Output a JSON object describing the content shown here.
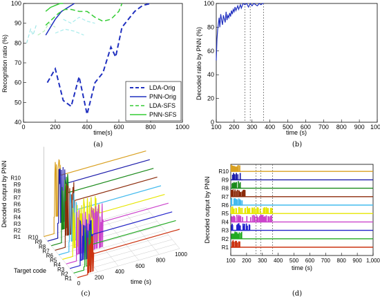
{
  "chart_data": [
    {
      "id": "a",
      "type": "line",
      "caption": "(a)",
      "xlabel": "time(s)",
      "ylabel": "Recognition ratio (%)",
      "xlim": [
        0,
        1000
      ],
      "ylim": [
        40,
        100
      ],
      "xticks": [
        0,
        200,
        400,
        600,
        800,
        1000
      ],
      "yticks": [
        40,
        50,
        60,
        70,
        80,
        90,
        100
      ],
      "legend_position": "bottom-right",
      "series": [
        {
          "name": "LDA-Orig",
          "color": "#1f2fbf",
          "dash": "7,4",
          "width": 2,
          "x": [
            150,
            200,
            250,
            300,
            350,
            400,
            450,
            500,
            550,
            580,
            620,
            660,
            700,
            750,
            800
          ],
          "y": [
            60,
            67,
            51,
            48,
            63,
            44,
            60,
            65,
            78,
            73,
            88,
            92,
            96,
            99,
            100
          ]
        },
        {
          "name": "PNN-Orig",
          "color": "#1f2fbf",
          "dash": "",
          "width": 1.5,
          "x": [
            140,
            170,
            200,
            240,
            280,
            320
          ],
          "y": [
            84,
            88,
            92,
            96,
            98,
            100
          ]
        },
        {
          "name": "LDA-SFS",
          "color": "#33cc33",
          "dash": "7,4",
          "width": 1.5,
          "x": [
            140,
            180,
            220,
            260,
            300,
            350,
            400,
            450,
            500,
            550,
            600,
            620
          ],
          "y": [
            89,
            92,
            95,
            97,
            97,
            96,
            96,
            93,
            91,
            92,
            96,
            100
          ]
        },
        {
          "name": "PNN-SFS",
          "color": "#33cc33",
          "dash": "",
          "width": 1.5,
          "x": [
            140,
            170,
            200,
            230,
            250
          ],
          "y": [
            96,
            98,
            99,
            100,
            100
          ]
        }
      ]
    },
    {
      "id": "b",
      "type": "line",
      "caption": "(b)",
      "xlabel": "time (s)",
      "ylabel": "Decoded ratio by PNN (%)",
      "xlim": [
        100,
        1000
      ],
      "ylim": [
        0,
        100
      ],
      "xticks": [
        100,
        200,
        300,
        400,
        500,
        600,
        700,
        800,
        900,
        1000
      ],
      "yticks": [
        0,
        20,
        40,
        60,
        80,
        100
      ],
      "vlines": [
        260,
        290,
        365
      ],
      "series": [
        {
          "name": "",
          "color": "#1f2fbf",
          "x": [
            100,
            104,
            108,
            112,
            116,
            120,
            125,
            130,
            135,
            140,
            145,
            150,
            155,
            160,
            165,
            170,
            175,
            180,
            185,
            190,
            195,
            200,
            205,
            210,
            215,
            220,
            225,
            230,
            235,
            240,
            245,
            250,
            260,
            270,
            280,
            290,
            300,
            310,
            320,
            330,
            340,
            350,
            360,
            365
          ],
          "y": [
            52,
            70,
            78,
            83,
            88,
            80,
            91,
            86,
            82,
            90,
            87,
            84,
            93,
            86,
            90,
            88,
            92,
            89,
            94,
            91,
            95,
            93,
            97,
            94,
            96,
            98,
            95,
            97,
            99,
            96,
            98,
            100,
            99,
            100,
            97,
            100,
            98,
            100,
            99,
            98,
            100,
            99,
            100,
            100
          ]
        }
      ]
    },
    {
      "id": "c",
      "type": "line",
      "caption": "(c)",
      "xlabel": "time (s)",
      "ylabel": "Decoded output by PNN",
      "depth_label": "Target code",
      "xlim": [
        0,
        1000
      ],
      "xticks": [
        0,
        200,
        400,
        600,
        800,
        1000
      ],
      "row_labels": [
        "R1",
        "R2",
        "R3",
        "R4",
        "R5",
        "R6",
        "R7",
        "R8",
        "R9",
        "R10"
      ],
      "row_colors": [
        "#cc3311",
        "#22aa22",
        "#2222cc",
        "#cc44cc",
        "#e6e600",
        "#44bbee",
        "#8b2a0a",
        "#1a8a1a",
        "#1a1aaa",
        "#d9a020"
      ],
      "active_until": [
        160,
        170,
        220,
        360,
        360,
        175,
        190,
        165,
        175,
        160
      ]
    },
    {
      "id": "d",
      "type": "line",
      "caption": "(d)",
      "xlabel": "time (s)",
      "ylabel": "Decoded output by PNN",
      "xlim": [
        100,
        1000
      ],
      "xticks": [
        100,
        200,
        300,
        400,
        500,
        600,
        700,
        800,
        900,
        1000
      ],
      "xtick_labels": [
        "100",
        "200",
        "300",
        "400",
        "500",
        "600",
        "700",
        "800",
        "900",
        "1,000"
      ],
      "row_labels": [
        "R1",
        "R2",
        "R3",
        "R4",
        "R5",
        "R6",
        "R7",
        "R8",
        "R9",
        "R10"
      ],
      "row_colors": [
        "#cc3311",
        "#22aa22",
        "#2222cc",
        "#cc44cc",
        "#e6e600",
        "#44bbee",
        "#8b2a0a",
        "#1a8a1a",
        "#1a1aaa",
        "#d9a020"
      ],
      "vlines": [
        260,
        290,
        365
      ],
      "active_until": [
        160,
        170,
        220,
        360,
        360,
        175,
        190,
        165,
        175,
        160
      ]
    }
  ]
}
